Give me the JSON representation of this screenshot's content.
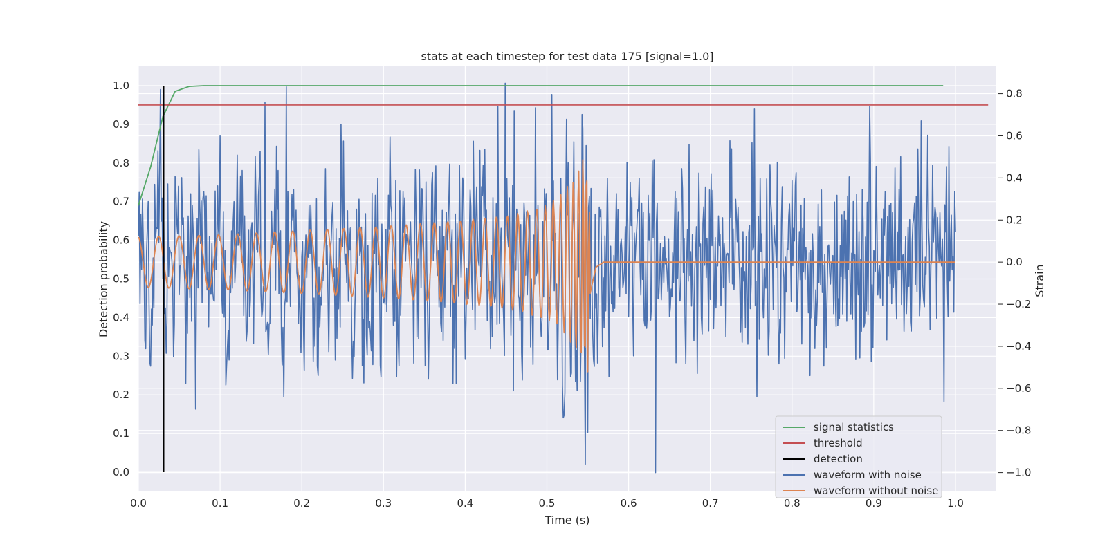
{
  "chart_data": {
    "type": "line",
    "title": "stats at each timestep for test data 175 [signal=1.0]",
    "xlabel": "Time (s)",
    "ylabel": "Detection probability",
    "y2label": "Strain",
    "xlim": [
      0.0,
      1.05
    ],
    "ylim": [
      -0.05,
      1.05
    ],
    "y2lim": [
      -1.09,
      0.93
    ],
    "xticks": [
      "0.0",
      "0.1",
      "0.2",
      "0.3",
      "0.4",
      "0.5",
      "0.6",
      "0.7",
      "0.8",
      "0.9",
      "1.0"
    ],
    "yticks": [
      "0.0",
      "0.1",
      "0.2",
      "0.3",
      "0.4",
      "0.5",
      "0.6",
      "0.7",
      "0.8",
      "0.9",
      "1.0"
    ],
    "y2ticks": [
      "−1.0",
      "−0.8",
      "−0.6",
      "−0.4",
      "−0.2",
      "0.0",
      "0.2",
      "0.4",
      "0.6",
      "0.8"
    ],
    "grid": true,
    "legend_position": "lower-right",
    "background": "#eaeaf2",
    "series": [
      {
        "name": "signal statistics",
        "color": "#55a868",
        "axis": "left",
        "x": [
          0.0,
          0.015,
          0.03,
          0.045,
          0.062,
          0.08,
          0.1,
          0.2,
          0.4,
          0.6,
          0.8,
          0.985
        ],
        "y": [
          0.69,
          0.79,
          0.92,
          0.985,
          0.998,
          1.0,
          1.0,
          1.0,
          1.0,
          1.0,
          1.0,
          1.0
        ]
      },
      {
        "name": "threshold",
        "color": "#c44e52",
        "axis": "left",
        "x": [
          0.0,
          1.04
        ],
        "y": [
          0.95,
          0.95
        ]
      },
      {
        "name": "detection",
        "color": "#000000",
        "axis": "left",
        "x": [
          0.031,
          0.031
        ],
        "y": [
          0.0,
          1.0
        ]
      },
      {
        "name": "waveform with noise",
        "color": "#4c72b0",
        "axis": "right",
        "description": "noisy strain trace, roughly 1000 samples between 0.0 and 1.0 s",
        "noise_std": 0.25,
        "peaks": [
          [
            0.027,
            0.82
          ],
          [
            0.155,
            0.76
          ],
          [
            0.449,
            0.85
          ],
          [
            0.46,
            0.72
          ],
          [
            0.547,
            -0.96
          ],
          [
            0.633,
            -1.0
          ],
          [
            0.895,
            0.74
          ],
          [
            0.992,
            0.55
          ]
        ]
      },
      {
        "name": "waveform without noise",
        "color": "#dd8452",
        "axis": "right",
        "description": "chirp signal of rising frequency and amplitude, merger near 0.553 s then flat at 0",
        "merger_time": 0.553,
        "samples": {
          "x": [
            0.0,
            0.1,
            0.2,
            0.3,
            0.4,
            0.45,
            0.5,
            0.52,
            0.54,
            0.553,
            0.56,
            0.57,
            1.0
          ],
          "amplitude": [
            0.12,
            0.13,
            0.15,
            0.17,
            0.2,
            0.22,
            0.27,
            0.33,
            0.45,
            0.62,
            0.1,
            0.0,
            0.0
          ]
        }
      }
    ]
  }
}
